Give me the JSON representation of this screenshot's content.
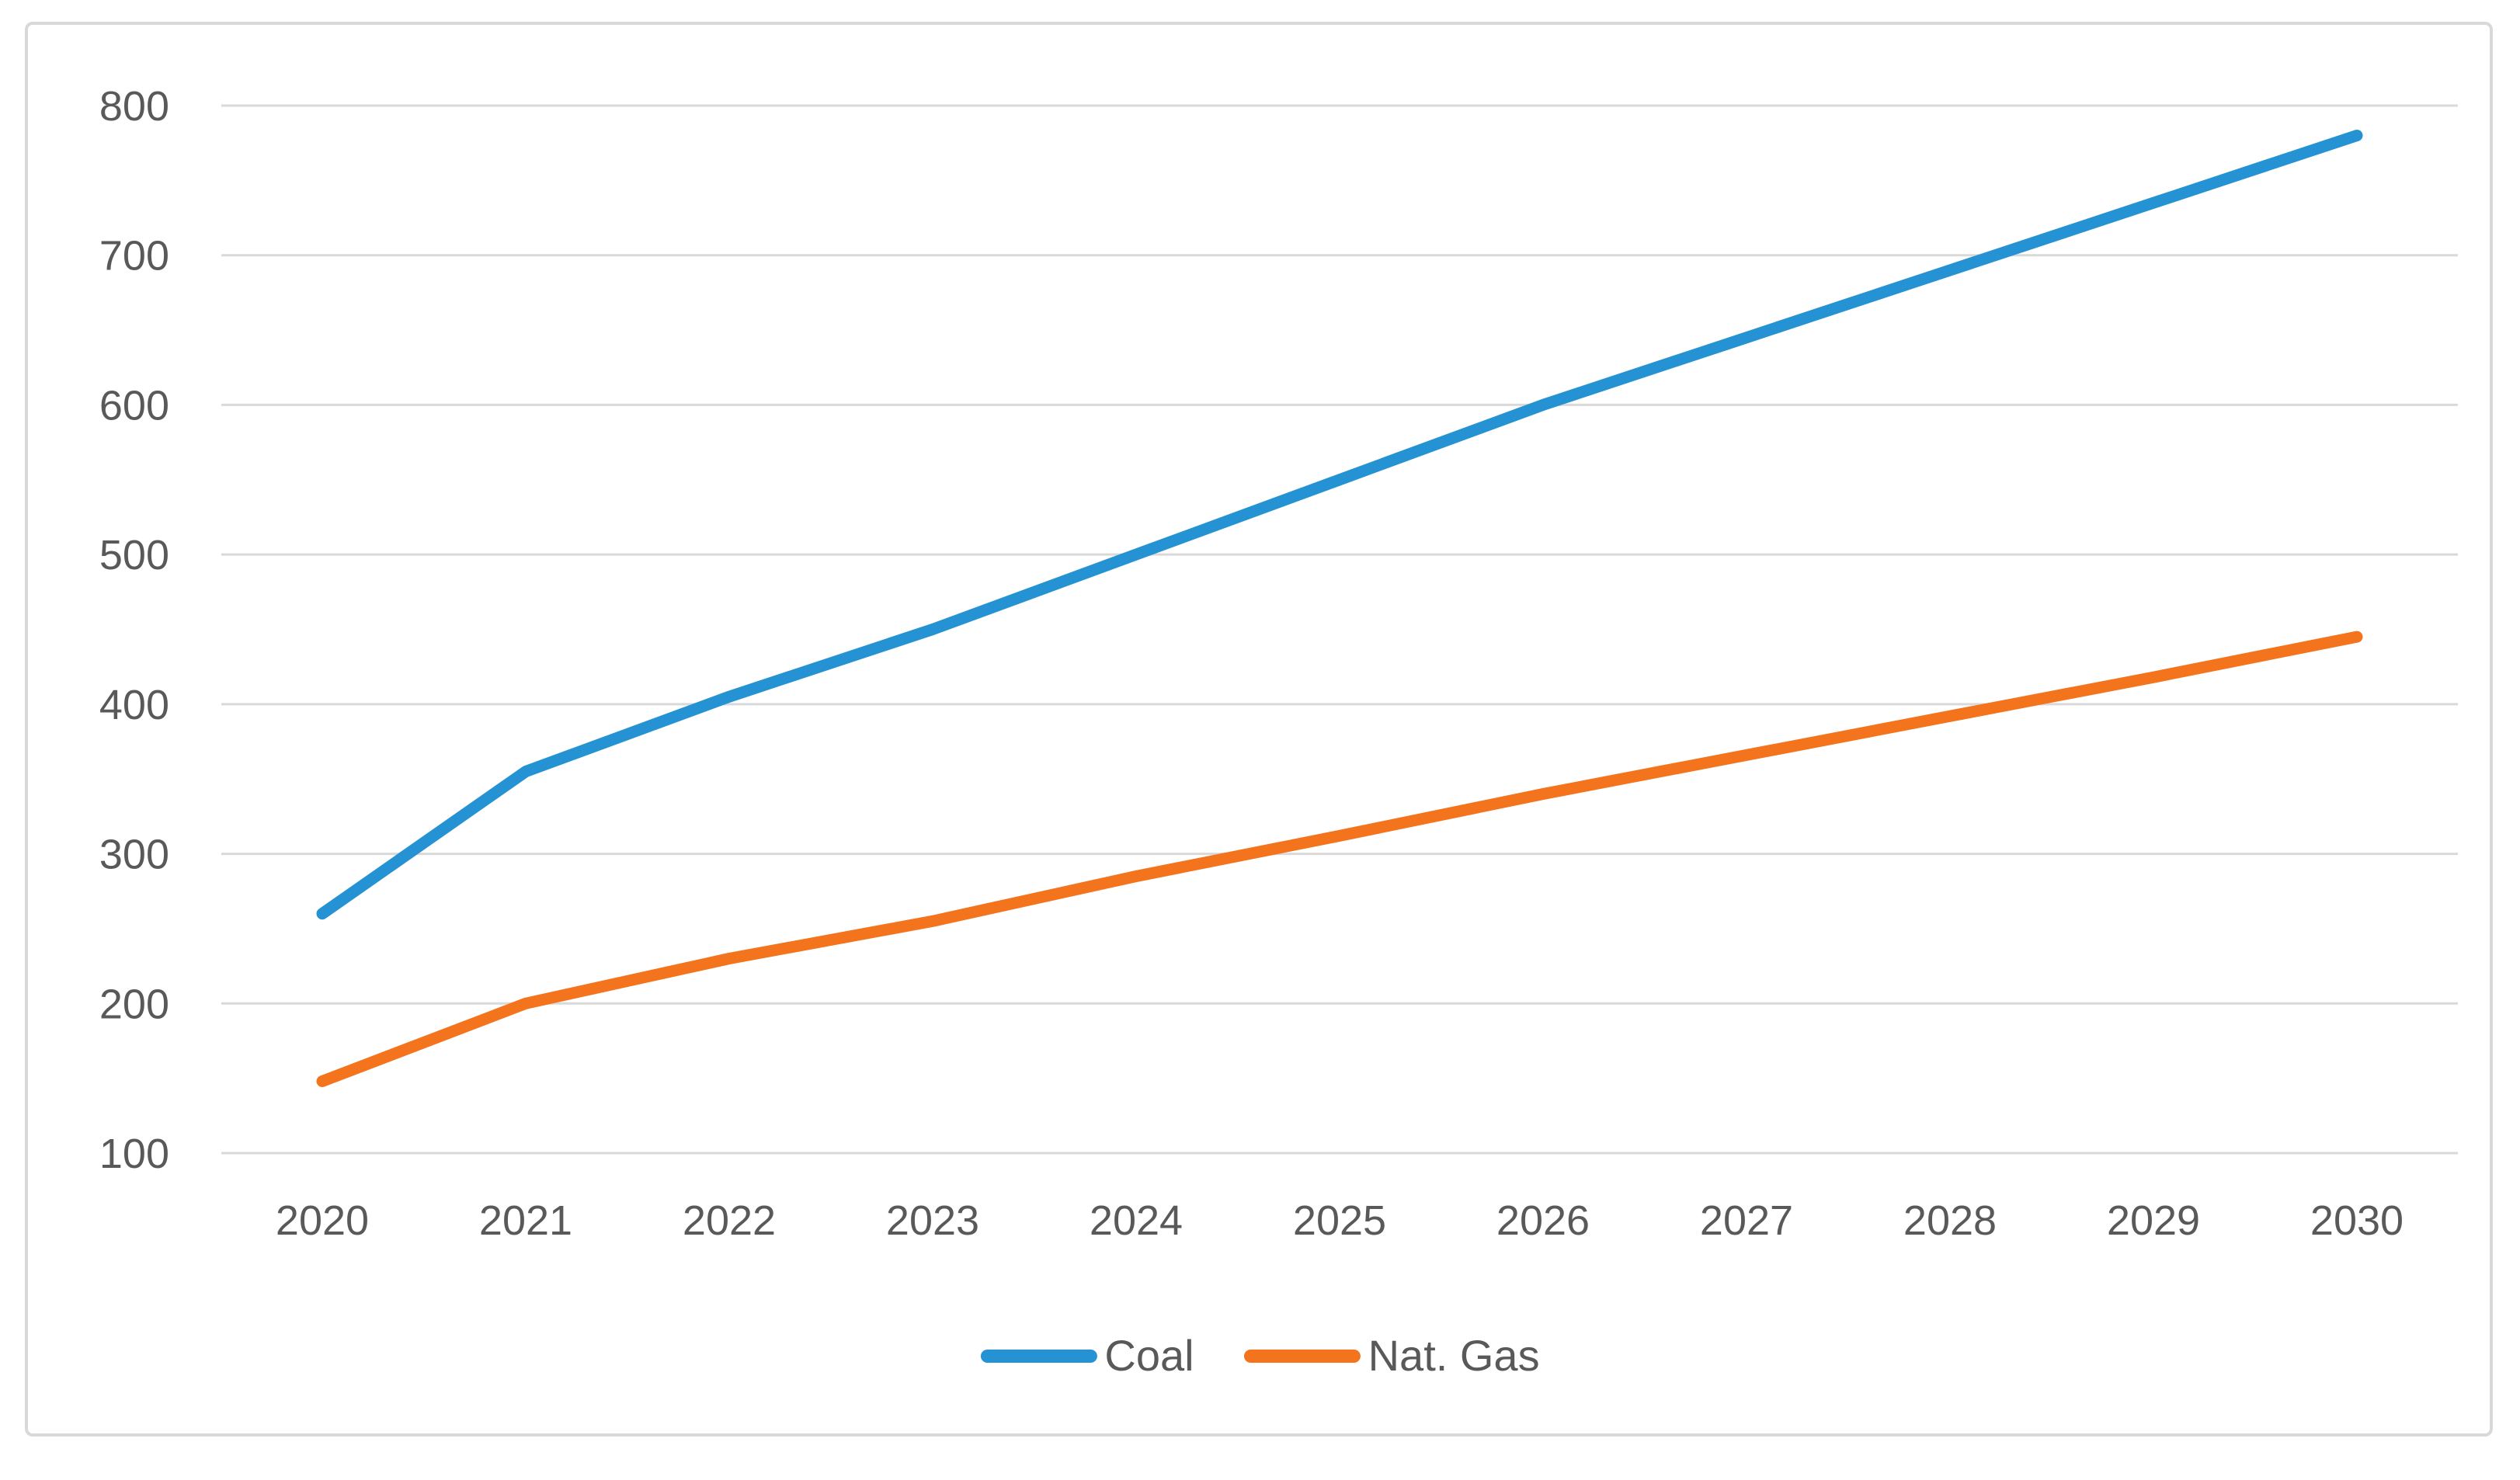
{
  "chart_data": {
    "type": "line",
    "title": "",
    "xlabel": "",
    "ylabel": "",
    "categories": [
      "2020",
      "2021",
      "2022",
      "2023",
      "2024",
      "2025",
      "2026",
      "2027",
      "2028",
      "2029",
      "2030"
    ],
    "series": [
      {
        "name": "Coal",
        "color": "#2492D3",
        "values": [
          260,
          355,
          405,
          450,
          500,
          550,
          600,
          645,
          690,
          735,
          780
        ]
      },
      {
        "name": "Nat. Gas",
        "color": "#F4741E",
        "values": [
          148,
          200,
          230,
          255,
          285,
          312,
          340,
          366,
          392,
          418,
          445
        ]
      }
    ],
    "y_ticks": [
      100,
      200,
      300,
      400,
      500,
      600,
      700,
      800
    ],
    "ylim": [
      100,
      800
    ],
    "grid": true,
    "grid_color": "#D9D9D9",
    "axis_text_color": "#595959",
    "legend_position": "bottom",
    "legend_labels": [
      "Coal",
      "Nat. Gas"
    ]
  }
}
